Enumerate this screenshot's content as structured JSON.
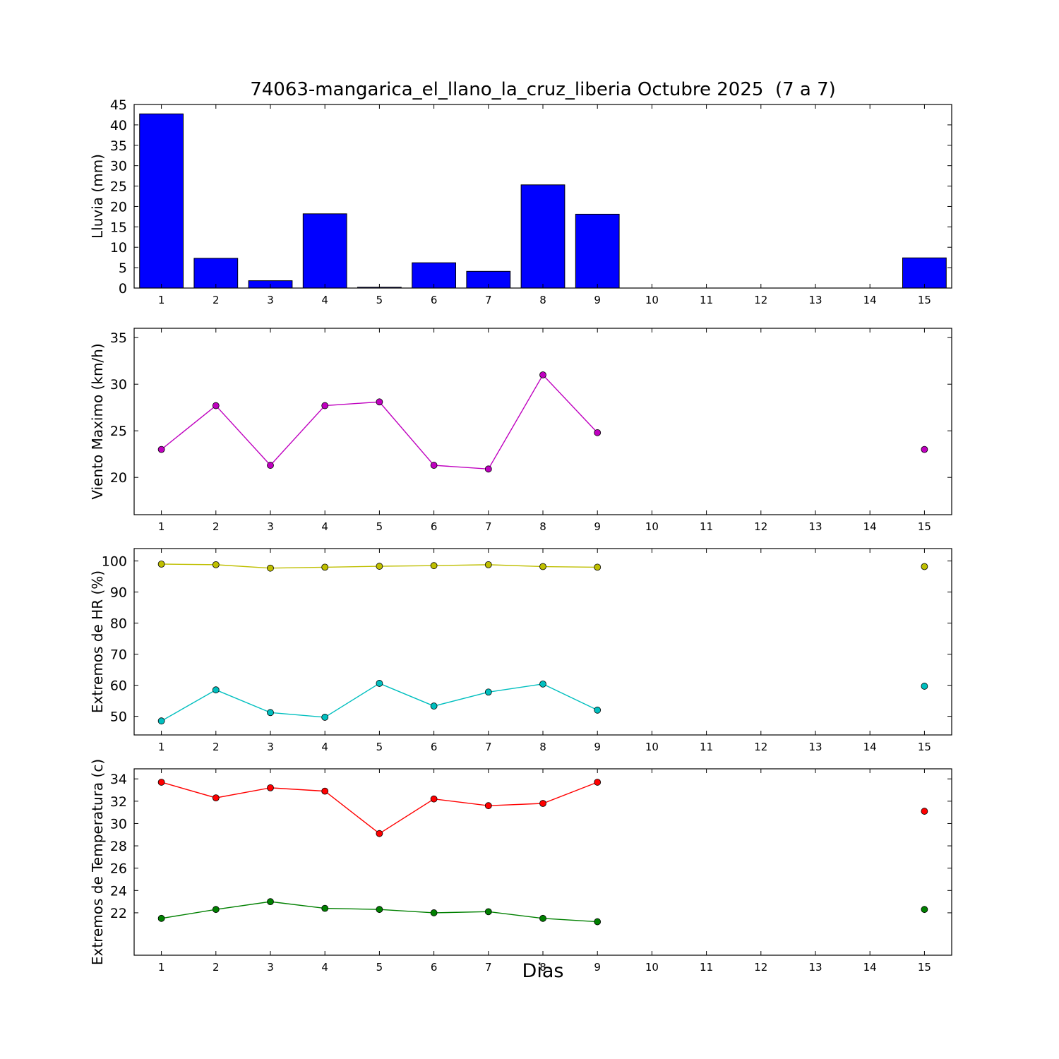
{
  "chart_data": [
    {
      "type": "bar",
      "title": "74063-mangarica_el_llano_la_cruz_liberia Octubre 2025  (7 a 7)",
      "ylabel": "Lluvia (mm)",
      "x": [
        1,
        2,
        3,
        4,
        5,
        6,
        7,
        8,
        9,
        10,
        11,
        12,
        13,
        14,
        15
      ],
      "values": [
        42.7,
        7.3,
        1.8,
        18.2,
        0.2,
        6.2,
        4.1,
        25.3,
        18.1,
        0,
        0,
        0,
        0,
        0,
        7.4
      ],
      "bar_color": "#0000ff",
      "xlim": [
        0.5,
        15.5
      ],
      "ylim": [
        0,
        45
      ],
      "yticks": [
        0,
        5,
        10,
        15,
        20,
        25,
        30,
        35,
        40,
        45
      ],
      "grid": false,
      "legend": "none"
    },
    {
      "type": "line",
      "ylabel": "Viento Maximo (km/h)",
      "x": [
        1,
        2,
        3,
        4,
        5,
        6,
        7,
        8,
        9,
        10,
        11,
        12,
        13,
        14,
        15
      ],
      "series": [
        {
          "name": "viento-maximo",
          "color": "#bf00bf",
          "values": [
            23.0,
            27.7,
            21.3,
            27.7,
            28.1,
            21.3,
            20.9,
            31.0,
            24.8,
            null,
            null,
            null,
            null,
            null,
            23.0
          ]
        }
      ],
      "xlim": [
        0.5,
        15.5
      ],
      "ylim": [
        16,
        36
      ],
      "yticks": [
        20,
        25,
        30,
        35
      ],
      "grid": false,
      "legend": "none"
    },
    {
      "type": "line",
      "ylabel": "Extremos de HR (%)",
      "x": [
        1,
        2,
        3,
        4,
        5,
        6,
        7,
        8,
        9,
        10,
        11,
        12,
        13,
        14,
        15
      ],
      "series": [
        {
          "name": "hr-maxima",
          "color": "#bfbf00",
          "values": [
            99.0,
            98.8,
            97.7,
            98.0,
            98.3,
            98.5,
            98.8,
            98.2,
            98.0,
            null,
            null,
            null,
            null,
            null,
            98.2
          ]
        },
        {
          "name": "hr-minima",
          "color": "#00bfbf",
          "values": [
            48.5,
            58.5,
            51.2,
            49.7,
            60.6,
            53.3,
            57.8,
            60.4,
            52.0,
            null,
            null,
            null,
            null,
            null,
            59.7
          ]
        }
      ],
      "xlim": [
        0.5,
        15.5
      ],
      "ylim": [
        44,
        104
      ],
      "yticks": [
        50,
        60,
        70,
        80,
        90,
        100
      ],
      "grid": false,
      "legend": "none"
    },
    {
      "type": "line",
      "ylabel": "Extremos de Temperatura (c)",
      "xlabel": "Dias",
      "x": [
        1,
        2,
        3,
        4,
        5,
        6,
        7,
        8,
        9,
        10,
        11,
        12,
        13,
        14,
        15
      ],
      "series": [
        {
          "name": "temperatura-maxima",
          "color": "#ff0000",
          "values": [
            33.7,
            32.3,
            33.2,
            32.9,
            29.1,
            32.2,
            31.6,
            31.8,
            33.7,
            null,
            null,
            null,
            null,
            null,
            31.1
          ]
        },
        {
          "name": "temperatura-minima",
          "color": "#008000",
          "values": [
            21.5,
            22.3,
            23.0,
            22.4,
            22.3,
            22.0,
            22.1,
            21.5,
            21.2,
            null,
            null,
            null,
            null,
            null,
            22.3
          ]
        }
      ],
      "xlim": [
        0.5,
        15.5
      ],
      "ylim": [
        18.2,
        34.9
      ],
      "yticks": [
        22,
        24,
        26,
        28,
        30,
        32,
        34
      ],
      "grid": false,
      "legend": "none"
    }
  ]
}
